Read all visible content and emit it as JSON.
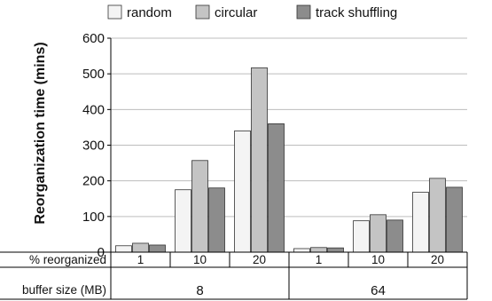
{
  "chart_data": {
    "type": "bar",
    "title": "",
    "ylabel": "Reorganization time (mins)",
    "ylim": [
      0,
      600
    ],
    "yticks": [
      0,
      100,
      200,
      300,
      400,
      500,
      600
    ],
    "grid": true,
    "legend_position": "top",
    "row_labels": {
      "reorganized": "% reorganized",
      "buffer": "buffer size (MB)"
    },
    "groups": [
      {
        "label": "8",
        "categories": [
          "1",
          "10",
          "20"
        ]
      },
      {
        "label": "64",
        "categories": [
          "1",
          "10",
          "20"
        ]
      }
    ],
    "series": [
      {
        "name": "random",
        "color": "#f4f4f4",
        "values": [
          18,
          175,
          340,
          10,
          88,
          168
        ]
      },
      {
        "name": "circular",
        "color": "#c4c4c4",
        "values": [
          25,
          257,
          517,
          13,
          105,
          207
        ]
      },
      {
        "name": "track shuffling",
        "color": "#8c8c8c",
        "values": [
          20,
          180,
          360,
          12,
          90,
          182
        ]
      }
    ]
  }
}
